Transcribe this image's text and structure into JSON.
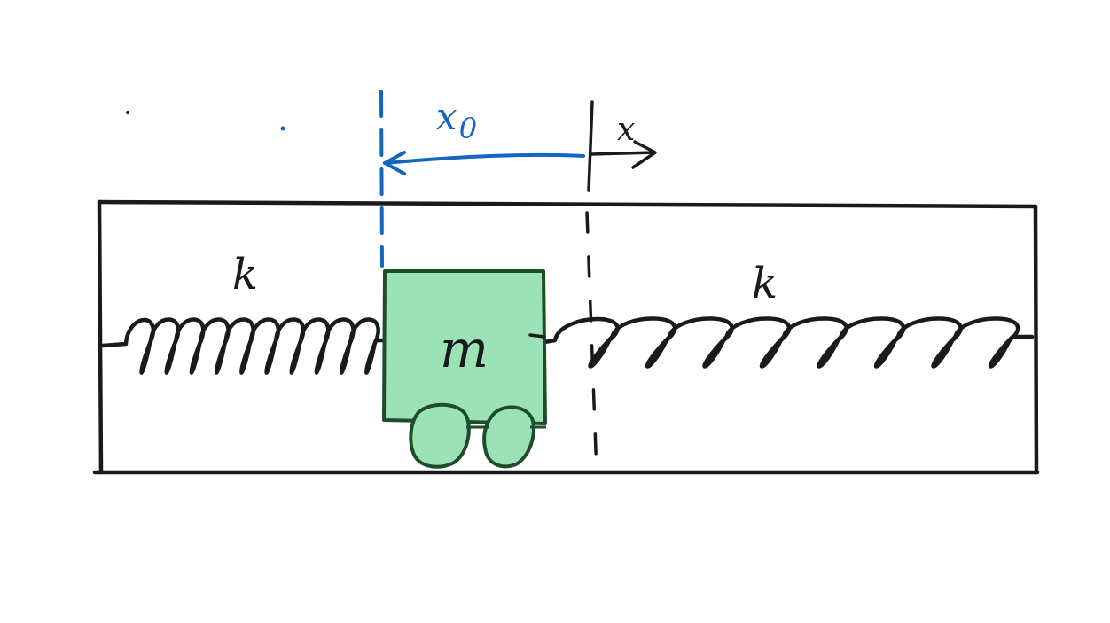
{
  "diagram": {
    "labels": {
      "left_spring": "k",
      "right_spring": "k",
      "mass": "m",
      "initial_displacement": "x0",
      "coordinate": "x"
    },
    "colors": {
      "ink": "#1a1a1a",
      "mass_fill": "#9be3b6",
      "mass_outline": "#1f4d2c",
      "annotation_blue": "#1565c0"
    }
  }
}
